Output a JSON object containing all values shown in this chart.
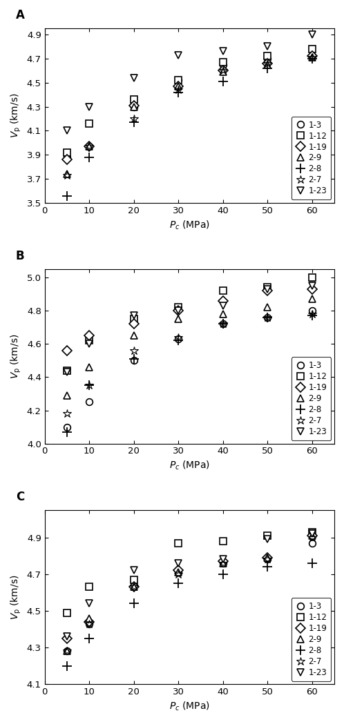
{
  "panels": [
    "A",
    "B",
    "C"
  ],
  "x": [
    5,
    10,
    20,
    30,
    40,
    50,
    60
  ],
  "series_labels": [
    "1-3",
    "1-12",
    "1-19",
    "2-9",
    "2-8",
    "2-7",
    "1-23"
  ],
  "markers": [
    "o",
    "s",
    "D",
    "^",
    "+",
    "*",
    "v"
  ],
  "panel_A": {
    "ylim": [
      3.5,
      4.95
    ],
    "yticks": [
      3.5,
      3.7,
      3.9,
      4.1,
      4.3,
      4.5,
      4.7,
      4.9
    ],
    "data": {
      "1-3": [
        3.88,
        3.97,
        4.3,
        4.52,
        4.65,
        4.7,
        4.72
      ],
      "1-12": [
        3.92,
        4.16,
        4.36,
        4.52,
        4.67,
        4.72,
        4.78
      ],
      "1-19": [
        3.86,
        3.97,
        4.31,
        4.47,
        4.6,
        4.66,
        4.72
      ],
      "2-9": [
        3.74,
        3.97,
        4.3,
        4.47,
        4.59,
        4.65,
        4.71
      ],
      "2-8": [
        3.56,
        3.88,
        4.17,
        4.42,
        4.51,
        4.62,
        4.7
      ],
      "2-7": [
        3.73,
        3.97,
        4.2,
        4.44,
        4.6,
        4.66,
        4.71
      ],
      "1-23": [
        4.1,
        4.3,
        4.54,
        4.73,
        4.76,
        4.8,
        4.9
      ]
    }
  },
  "panel_B": {
    "ylim": [
      4.0,
      5.05
    ],
    "yticks": [
      4.0,
      4.2,
      4.4,
      4.6,
      4.8,
      5.0
    ],
    "data": {
      "1-3": [
        4.1,
        4.25,
        4.5,
        4.63,
        4.72,
        4.76,
        4.8
      ],
      "1-12": [
        4.44,
        4.62,
        4.75,
        4.82,
        4.92,
        4.94,
        5.0
      ],
      "1-19": [
        4.56,
        4.65,
        4.72,
        4.8,
        4.86,
        4.92,
        4.93
      ],
      "2-9": [
        4.29,
        4.46,
        4.65,
        4.75,
        4.78,
        4.82,
        4.87
      ],
      "2-8": [
        4.07,
        4.35,
        4.51,
        4.62,
        4.72,
        4.76,
        4.77
      ],
      "2-7": [
        4.18,
        4.35,
        4.56,
        4.64,
        4.72,
        4.76,
        4.78
      ],
      "1-23": [
        4.43,
        4.6,
        4.77,
        4.8,
        4.83,
        4.93,
        4.95
      ]
    }
  },
  "panel_C": {
    "ylim": [
      4.1,
      5.05
    ],
    "yticks": [
      4.1,
      4.3,
      4.5,
      4.7,
      4.9
    ],
    "data": {
      "1-3": [
        4.28,
        4.43,
        4.64,
        4.71,
        4.76,
        4.78,
        4.87
      ],
      "1-12": [
        4.49,
        4.63,
        4.67,
        4.87,
        4.88,
        4.91,
        4.93
      ],
      "1-19": [
        4.35,
        4.44,
        4.63,
        4.72,
        4.77,
        4.79,
        4.91
      ],
      "2-9": [
        4.28,
        4.46,
        4.63,
        4.71,
        4.76,
        4.79,
        4.91
      ],
      "2-8": [
        4.2,
        4.35,
        4.54,
        4.65,
        4.7,
        4.74,
        4.76
      ],
      "2-7": [
        4.28,
        4.43,
        4.63,
        4.7,
        4.76,
        4.78,
        4.9
      ],
      "1-23": [
        4.36,
        4.54,
        4.72,
        4.76,
        4.78,
        4.89,
        4.92
      ]
    }
  },
  "xlabel": "$P_c$ (MPa)",
  "xlim": [
    0,
    65
  ],
  "xticks": [
    0,
    10,
    20,
    30,
    40,
    50,
    60
  ],
  "marker_size": 7,
  "color": "black",
  "legend_fontsize": 8.5,
  "axis_fontsize": 9.5,
  "label_fontsize": 10,
  "panel_label_fontsize": 12
}
